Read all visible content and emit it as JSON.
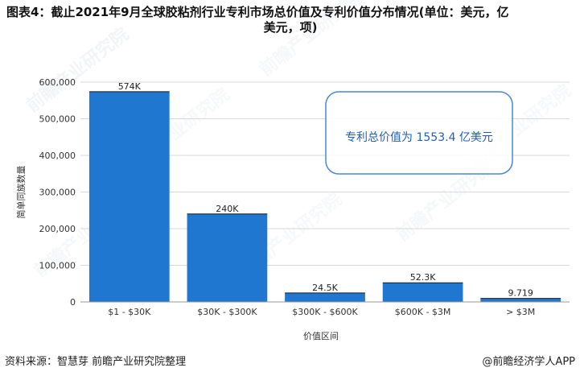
{
  "title_line1": "图表4：截止2021年9月全球胶粘剂行业专利市场总价值及专利价值分布情况(单位：美元，亿",
  "title_line2": "美元，项)",
  "footer": {
    "source": "资料来源：智慧芽 前瞻产业研究院整理",
    "brand": "@前瞻经济学人APP"
  },
  "watermark_text": "前瞻产业研究院",
  "colors": {
    "bar": "#1f77d0",
    "callout_border": "#4a86d8",
    "callout_text": "#1f5fb8",
    "axis": "#333333",
    "grid": "#d9d9d9"
  },
  "chart_data": {
    "type": "bar",
    "categories": [
      "$1 - $30K",
      "$30K - $300K",
      "$300K - $600K",
      "$600K - $3M",
      "> $3M"
    ],
    "values": [
      574000,
      240000,
      24500,
      52300,
      9719
    ],
    "data_labels": [
      "574K",
      "240K",
      "24.5K",
      "52.3K",
      "9.719"
    ],
    "xlabel": "价值区间",
    "ylabel": "简单同族数量",
    "ylim": [
      0,
      600000
    ],
    "yticks": [
      0,
      100000,
      200000,
      300000,
      400000,
      500000,
      600000
    ],
    "ytick_labels": [
      "0",
      "100,000",
      "200,000",
      "300,000",
      "400,000",
      "500,000",
      "600,000"
    ],
    "grid": true,
    "annotation": "专利总价值为 1553.4 亿美元"
  }
}
